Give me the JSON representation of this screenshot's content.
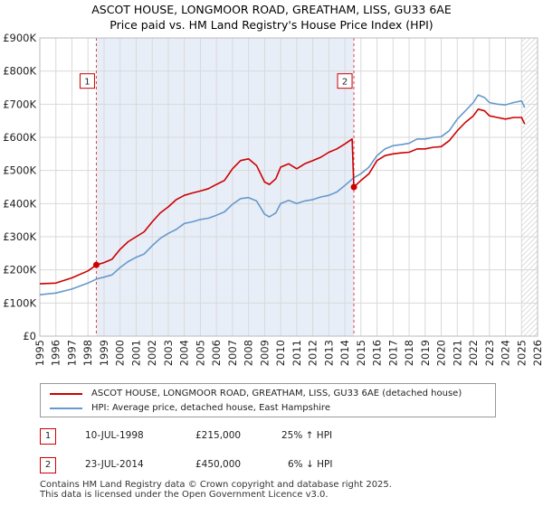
{
  "chart_data": {
    "type": "line",
    "title": "ASCOT HOUSE, LONGMOOR ROAD, GREATHAM, LISS, GU33 6AE",
    "subtitle": "Price paid vs. HM Land Registry's House Price Index (HPI)",
    "xlim": [
      1995,
      2026
    ],
    "ylim": [
      0,
      900000
    ],
    "y_ticks": [
      {
        "value": 0,
        "label": "£0"
      },
      {
        "value": 100000,
        "label": "£100K"
      },
      {
        "value": 200000,
        "label": "£200K"
      },
      {
        "value": 300000,
        "label": "£300K"
      },
      {
        "value": 400000,
        "label": "£400K"
      },
      {
        "value": 500000,
        "label": "£500K"
      },
      {
        "value": 600000,
        "label": "£600K"
      },
      {
        "value": 700000,
        "label": "£700K"
      },
      {
        "value": 800000,
        "label": "£800K"
      },
      {
        "value": 900000,
        "label": "£900K"
      }
    ],
    "x_ticks": [
      "1995",
      "1996",
      "1997",
      "1998",
      "1999",
      "2000",
      "2001",
      "2002",
      "2003",
      "2004",
      "2005",
      "2006",
      "2007",
      "2008",
      "2009",
      "2010",
      "2011",
      "2012",
      "2013",
      "2014",
      "2015",
      "2016",
      "2017",
      "2018",
      "2019",
      "2020",
      "2021",
      "2022",
      "2023",
      "2024",
      "2025",
      "2026"
    ],
    "grid": true,
    "shaded_regions": [
      {
        "from": 1998.52,
        "to": 2014.56
      },
      {
        "from": 2025.0,
        "to": 2026.0,
        "hatched": true
      }
    ],
    "series": [
      {
        "name": "ASCOT HOUSE, LONGMOOR ROAD, GREATHAM, LISS, GU33 6AE (detached house)",
        "color": "#cc0000",
        "points": [
          [
            1995.0,
            158000
          ],
          [
            1996.0,
            160000
          ],
          [
            1997.0,
            176000
          ],
          [
            1998.0,
            197000
          ],
          [
            1998.52,
            215000
          ],
          [
            1999.0,
            222000
          ],
          [
            1999.5,
            232000
          ],
          [
            2000.0,
            262000
          ],
          [
            2000.5,
            285000
          ],
          [
            2001.0,
            300000
          ],
          [
            2001.5,
            315000
          ],
          [
            2002.0,
            345000
          ],
          [
            2002.5,
            372000
          ],
          [
            2003.0,
            390000
          ],
          [
            2003.5,
            412000
          ],
          [
            2004.0,
            425000
          ],
          [
            2004.5,
            432000
          ],
          [
            2005.0,
            438000
          ],
          [
            2005.5,
            445000
          ],
          [
            2006.0,
            458000
          ],
          [
            2006.5,
            470000
          ],
          [
            2007.0,
            505000
          ],
          [
            2007.5,
            530000
          ],
          [
            2008.0,
            535000
          ],
          [
            2008.5,
            515000
          ],
          [
            2009.0,
            465000
          ],
          [
            2009.3,
            458000
          ],
          [
            2009.7,
            475000
          ],
          [
            2010.0,
            510000
          ],
          [
            2010.5,
            520000
          ],
          [
            2011.0,
            505000
          ],
          [
            2011.5,
            520000
          ],
          [
            2012.0,
            530000
          ],
          [
            2012.5,
            540000
          ],
          [
            2013.0,
            555000
          ],
          [
            2013.5,
            565000
          ],
          [
            2014.0,
            580000
          ],
          [
            2014.45,
            595000
          ],
          [
            2014.56,
            450000
          ],
          [
            2015.0,
            470000
          ],
          [
            2015.5,
            490000
          ],
          [
            2016.0,
            530000
          ],
          [
            2016.5,
            545000
          ],
          [
            2017.0,
            550000
          ],
          [
            2017.5,
            553000
          ],
          [
            2018.0,
            555000
          ],
          [
            2018.5,
            565000
          ],
          [
            2019.0,
            565000
          ],
          [
            2019.5,
            570000
          ],
          [
            2020.0,
            572000
          ],
          [
            2020.5,
            590000
          ],
          [
            2021.0,
            620000
          ],
          [
            2021.5,
            645000
          ],
          [
            2022.0,
            665000
          ],
          [
            2022.3,
            685000
          ],
          [
            2022.7,
            680000
          ],
          [
            2023.0,
            665000
          ],
          [
            2023.5,
            660000
          ],
          [
            2024.0,
            655000
          ],
          [
            2024.5,
            660000
          ],
          [
            2025.0,
            660000
          ],
          [
            2025.2,
            640000
          ]
        ]
      },
      {
        "name": "HPI: Average price, detached house, East Hampshire",
        "color": "#6699cc",
        "points": [
          [
            1995.0,
            125000
          ],
          [
            1996.0,
            130000
          ],
          [
            1997.0,
            142000
          ],
          [
            1998.0,
            160000
          ],
          [
            1998.52,
            172000
          ],
          [
            1999.0,
            178000
          ],
          [
            1999.5,
            185000
          ],
          [
            2000.0,
            207000
          ],
          [
            2000.5,
            225000
          ],
          [
            2001.0,
            238000
          ],
          [
            2001.5,
            248000
          ],
          [
            2002.0,
            273000
          ],
          [
            2002.5,
            295000
          ],
          [
            2003.0,
            310000
          ],
          [
            2003.5,
            322000
          ],
          [
            2004.0,
            340000
          ],
          [
            2004.5,
            345000
          ],
          [
            2005.0,
            352000
          ],
          [
            2005.5,
            356000
          ],
          [
            2006.0,
            365000
          ],
          [
            2006.5,
            375000
          ],
          [
            2007.0,
            398000
          ],
          [
            2007.5,
            415000
          ],
          [
            2008.0,
            418000
          ],
          [
            2008.5,
            408000
          ],
          [
            2009.0,
            368000
          ],
          [
            2009.3,
            360000
          ],
          [
            2009.7,
            372000
          ],
          [
            2010.0,
            400000
          ],
          [
            2010.5,
            410000
          ],
          [
            2011.0,
            400000
          ],
          [
            2011.5,
            408000
          ],
          [
            2012.0,
            412000
          ],
          [
            2012.5,
            420000
          ],
          [
            2013.0,
            425000
          ],
          [
            2013.5,
            435000
          ],
          [
            2014.0,
            455000
          ],
          [
            2014.56,
            478000
          ],
          [
            2015.0,
            490000
          ],
          [
            2015.5,
            510000
          ],
          [
            2016.0,
            545000
          ],
          [
            2016.5,
            565000
          ],
          [
            2017.0,
            575000
          ],
          [
            2017.5,
            578000
          ],
          [
            2018.0,
            582000
          ],
          [
            2018.5,
            595000
          ],
          [
            2019.0,
            595000
          ],
          [
            2019.5,
            600000
          ],
          [
            2020.0,
            602000
          ],
          [
            2020.5,
            620000
          ],
          [
            2021.0,
            655000
          ],
          [
            2021.5,
            680000
          ],
          [
            2022.0,
            705000
          ],
          [
            2022.3,
            728000
          ],
          [
            2022.7,
            720000
          ],
          [
            2023.0,
            705000
          ],
          [
            2023.5,
            700000
          ],
          [
            2024.0,
            698000
          ],
          [
            2024.5,
            705000
          ],
          [
            2025.0,
            710000
          ],
          [
            2025.2,
            690000
          ]
        ]
      }
    ],
    "sale_markers": [
      {
        "id": "1",
        "x": 1998.52,
        "y": 215000
      },
      {
        "id": "2",
        "x": 2014.56,
        "y": 450000
      }
    ],
    "annotation_boxes": [
      {
        "label": "1",
        "x": 1998.52,
        "y": 770000
      },
      {
        "label": "2",
        "x": 2014.56,
        "y": 770000
      }
    ]
  },
  "transactions": [
    {
      "id": "1",
      "date": "10-JUL-1998",
      "price": "£215,000",
      "hpi_change": "25% ↑ HPI"
    },
    {
      "id": "2",
      "date": "23-JUL-2014",
      "price": "£450,000",
      "hpi_change": "6% ↓ HPI"
    }
  ],
  "footer": {
    "line1": "Contains HM Land Registry data © Crown copyright and database right 2025.",
    "line2": "This data is licensed under the Open Government Licence v3.0."
  }
}
